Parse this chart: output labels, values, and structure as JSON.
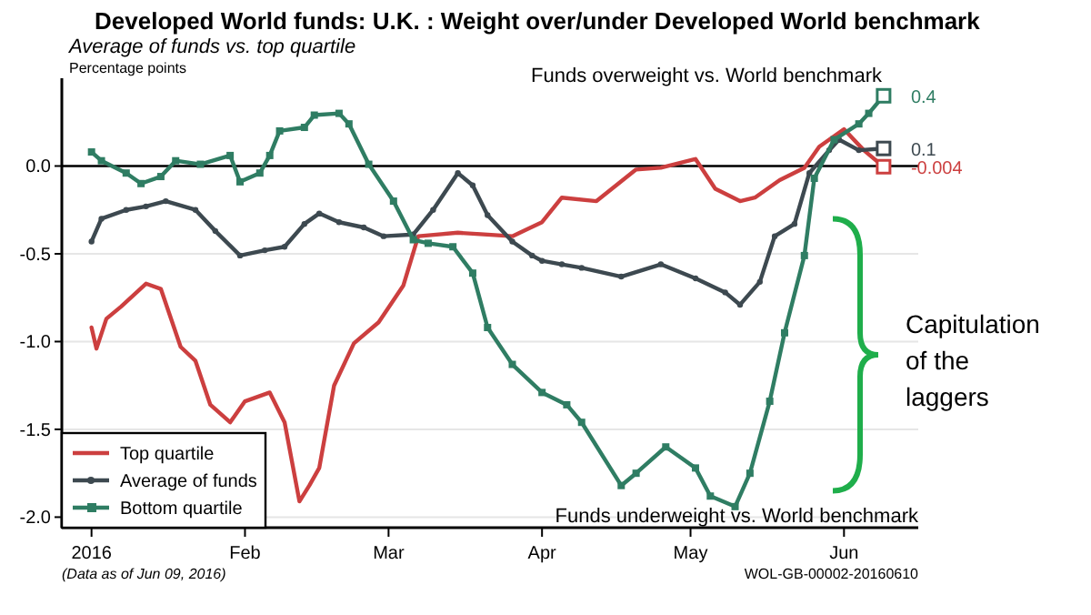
{
  "chart_data": {
    "type": "line",
    "title": "Developed World funds:  U.K. : Weight over/under Developed World benchmark",
    "subtitle": "Average of funds vs. top quartile",
    "ylabel": "Percentage points",
    "xlim": [
      "2015-12-26",
      "2016-06-16"
    ],
    "ylim": [
      -2.06,
      0.5
    ],
    "xticks": [
      {
        "value": "2016-01-01",
        "label": "2016"
      },
      {
        "value": "2016-02-01",
        "label": "Feb"
      },
      {
        "value": "2016-03-01",
        "label": "Mar"
      },
      {
        "value": "2016-04-01",
        "label": "Apr"
      },
      {
        "value": "2016-05-01",
        "label": "May"
      },
      {
        "value": "2016-06-01",
        "label": "Jun"
      }
    ],
    "yticks": [
      {
        "value": 0,
        "label": "0.0"
      },
      -0.5,
      {
        "value": -1,
        "label": "-1.0"
      },
      -1.5,
      {
        "value": -2,
        "label": "-2.0"
      }
    ],
    "grid": "y",
    "legend": "bottom left",
    "line_style": "solid",
    "ref_lines": [
      {
        "axis": "y",
        "value": 0,
        "color": "#000000"
      }
    ],
    "series": [
      {
        "name": "Top quartile",
        "color": "#cc3f3f",
        "marker": "none",
        "x": [
          "2016-01-01",
          "2016-01-02",
          "2016-01-04",
          "2016-01-07",
          "2016-01-12",
          "2016-01-15",
          "2016-01-19",
          "2016-01-22",
          "2016-01-25",
          "2016-01-29",
          "2016-02-01",
          "2016-02-06",
          "2016-02-09",
          "2016-02-12",
          "2016-02-14",
          "2016-02-16",
          "2016-02-19",
          "2016-02-23",
          "2016-02-28",
          "2016-03-04",
          "2016-03-07",
          "2016-03-15",
          "2016-03-26",
          "2016-04-01",
          "2016-04-05",
          "2016-04-12",
          "2016-04-20",
          "2016-04-25",
          "2016-05-02",
          "2016-05-06",
          "2016-05-11",
          "2016-05-14",
          "2016-05-19",
          "2016-05-24",
          "2016-05-27",
          "2016-06-01",
          "2016-06-05",
          "2016-06-09"
        ],
        "values": [
          -0.92,
          -1.04,
          -0.87,
          -0.8,
          -0.67,
          -0.7,
          -1.03,
          -1.11,
          -1.36,
          -1.46,
          -1.34,
          -1.29,
          -1.46,
          -1.91,
          -1.82,
          -1.72,
          -1.25,
          -1.01,
          -0.89,
          -0.68,
          -0.4,
          -0.38,
          -0.4,
          -0.32,
          -0.18,
          -0.2,
          -0.02,
          -0.01,
          0.04,
          -0.13,
          -0.2,
          -0.18,
          -0.08,
          -0.01,
          0.11,
          0.21,
          0.09,
          -0.004
        ],
        "value_labels": [
          null,
          null,
          null,
          null,
          null,
          null,
          null,
          null,
          null,
          null,
          null,
          null,
          null,
          null,
          null,
          null,
          null,
          null,
          null,
          null,
          null,
          null,
          null,
          null,
          null,
          null,
          null,
          null,
          null,
          null,
          null,
          null,
          null,
          null,
          null,
          null,
          null,
          "-0.004"
        ]
      },
      {
        "name": "Average of funds",
        "color": "#3d4950",
        "marker": "circle",
        "x": [
          "2016-01-01",
          "2016-01-03",
          "2016-01-08",
          "2016-01-12",
          "2016-01-16",
          "2016-01-22",
          "2016-01-26",
          "2016-01-31",
          "2016-02-05",
          "2016-02-09",
          "2016-02-13",
          "2016-02-16",
          "2016-02-20",
          "2016-02-25",
          "2016-02-29",
          "2016-03-06",
          "2016-03-10",
          "2016-03-15",
          "2016-03-18",
          "2016-03-21",
          "2016-03-26",
          "2016-03-30",
          "2016-04-01",
          "2016-04-05",
          "2016-04-09",
          "2016-04-17",
          "2016-04-25",
          "2016-05-02",
          "2016-05-08",
          "2016-05-11",
          "2016-05-15",
          "2016-05-18",
          "2016-05-22",
          "2016-05-25",
          "2016-05-29",
          "2016-05-31",
          "2016-06-04",
          "2016-06-09"
        ],
        "values": [
          -0.43,
          -0.3,
          -0.25,
          -0.23,
          -0.2,
          -0.25,
          -0.37,
          -0.51,
          -0.48,
          -0.46,
          -0.33,
          -0.27,
          -0.32,
          -0.35,
          -0.4,
          -0.39,
          -0.25,
          -0.04,
          -0.11,
          -0.28,
          -0.43,
          -0.51,
          -0.54,
          -0.56,
          -0.58,
          -0.63,
          -0.56,
          -0.64,
          -0.72,
          -0.79,
          -0.66,
          -0.4,
          -0.33,
          -0.04,
          0.09,
          0.15,
          0.09,
          0.1
        ],
        "value_labels": [
          null,
          null,
          null,
          null,
          null,
          null,
          null,
          null,
          null,
          null,
          null,
          null,
          null,
          null,
          null,
          null,
          null,
          null,
          null,
          null,
          null,
          null,
          null,
          null,
          null,
          null,
          null,
          null,
          null,
          null,
          null,
          null,
          null,
          null,
          null,
          null,
          null,
          "0.1"
        ]
      },
      {
        "name": "Bottom quartile",
        "color": "#2f7d63",
        "marker": "square",
        "x": [
          "2016-01-01",
          "2016-01-03",
          "2016-01-08",
          "2016-01-11",
          "2016-01-15",
          "2016-01-18",
          "2016-01-23",
          "2016-01-29",
          "2016-01-31",
          "2016-02-04",
          "2016-02-06",
          "2016-02-08",
          "2016-02-13",
          "2016-02-15",
          "2016-02-20",
          "2016-02-22",
          "2016-02-26",
          "2016-03-02",
          "2016-03-06",
          "2016-03-09",
          "2016-03-14",
          "2016-03-18",
          "2016-03-21",
          "2016-03-26",
          "2016-04-01",
          "2016-04-06",
          "2016-04-09",
          "2016-04-17",
          "2016-04-20",
          "2016-04-26",
          "2016-05-02",
          "2016-05-05",
          "2016-05-10",
          "2016-05-13",
          "2016-05-17",
          "2016-05-20",
          "2016-05-24",
          "2016-05-26",
          "2016-05-30",
          "2016-06-04",
          "2016-06-06",
          "2016-06-09"
        ],
        "values": [
          0.08,
          0.03,
          -0.04,
          -0.1,
          -0.06,
          0.03,
          0.01,
          0.06,
          -0.09,
          -0.04,
          0.06,
          0.2,
          0.22,
          0.29,
          0.3,
          0.24,
          0.01,
          -0.2,
          -0.42,
          -0.44,
          -0.46,
          -0.61,
          -0.92,
          -1.13,
          -1.29,
          -1.36,
          -1.46,
          -1.82,
          -1.75,
          -1.6,
          -1.72,
          -1.88,
          -1.94,
          -1.75,
          -1.34,
          -0.95,
          -0.51,
          -0.07,
          0.15,
          0.24,
          0.3,
          0.4
        ],
        "value_labels": [
          null,
          null,
          null,
          null,
          null,
          null,
          null,
          null,
          null,
          null,
          null,
          null,
          null,
          null,
          null,
          null,
          null,
          null,
          null,
          null,
          null,
          null,
          null,
          null,
          null,
          null,
          null,
          null,
          null,
          null,
          null,
          null,
          null,
          null,
          null,
          null,
          null,
          null,
          null,
          null,
          null,
          "0.4"
        ]
      }
    ],
    "annotations": [
      "Funds overweight vs. World benchmark",
      "Funds underweight vs. World benchmark",
      "Capitulation of the laggers",
      "(Data as of Jun 09, 2016)",
      "WOL-GB-00002-20160610"
    ]
  }
}
